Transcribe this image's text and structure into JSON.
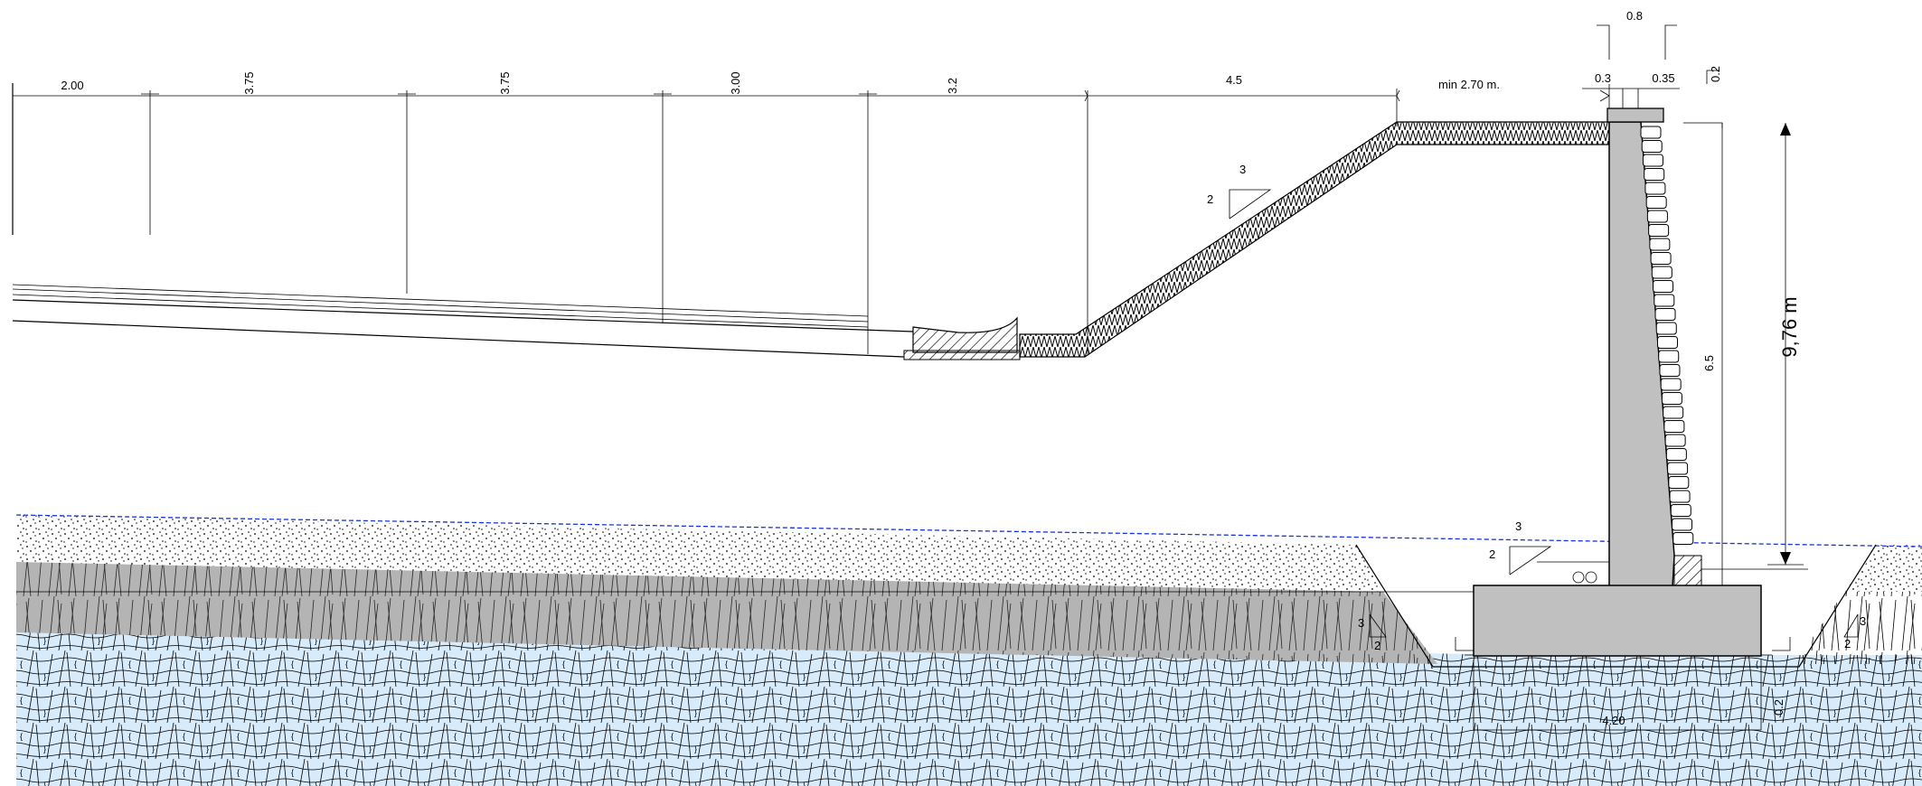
{
  "dimensions": {
    "lane1": "2.00",
    "lane2": "3.75",
    "lane3": "3.75",
    "lane4": "3.00",
    "lane5": "3.2",
    "slope_width": "4.5",
    "berm": "min 2.70 m.",
    "wall_top": "0.8",
    "wall_left": "0.3",
    "wall_right": "0.35",
    "cap": "0.2",
    "total_height": "9,76 m",
    "wall_height": "6.5",
    "footing_width": "4.20",
    "footing_thickness": "0.2"
  },
  "slopes": {
    "embankment_h": "3",
    "embankment_v": "2",
    "backfill_h": "3",
    "backfill_v": "2",
    "trench_left_h": "3",
    "trench_left_v": "2",
    "trench_right_h": "3",
    "trench_right_v": "2"
  },
  "colors": {
    "concrete": "#c0c0c0",
    "soil": "#b4b4b4",
    "rock": "#d7ebfa",
    "water_line": "#1a33cc"
  }
}
